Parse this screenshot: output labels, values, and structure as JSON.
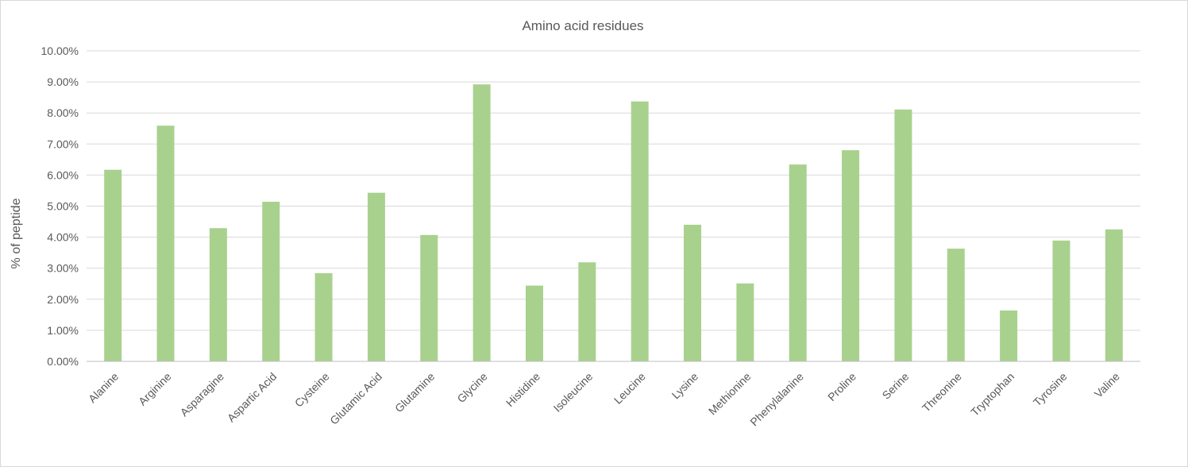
{
  "chart_data": {
    "type": "bar",
    "title": "Amino acid residues",
    "xlabel": "",
    "ylabel": "% of peptide",
    "ylim": [
      0,
      10
    ],
    "yticks": [
      "0.00%",
      "1.00%",
      "2.00%",
      "3.00%",
      "4.00%",
      "5.00%",
      "6.00%",
      "7.00%",
      "8.00%",
      "9.00%",
      "10.00%"
    ],
    "grid": true,
    "legend": "none",
    "bar_color": "#a9d18e",
    "categories": [
      "Alanine",
      "Arginine",
      "Asparagine",
      "Aspartic Acid",
      "Cysteine",
      "Glutamic Acid",
      "Glutamine",
      "Glycine",
      "Histidine",
      "Isoleucine",
      "Leucine",
      "Lysine",
      "Methionine",
      "Phenylalanine",
      "Proline",
      "Serine",
      "Threonine",
      "Tryptophan",
      "Tyrosine",
      "Valine"
    ],
    "values": [
      6.17,
      7.59,
      4.29,
      5.14,
      2.84,
      5.43,
      4.07,
      8.92,
      2.44,
      3.19,
      8.37,
      4.4,
      2.51,
      6.34,
      6.8,
      8.11,
      3.63,
      1.64,
      3.89,
      4.25
    ]
  }
}
